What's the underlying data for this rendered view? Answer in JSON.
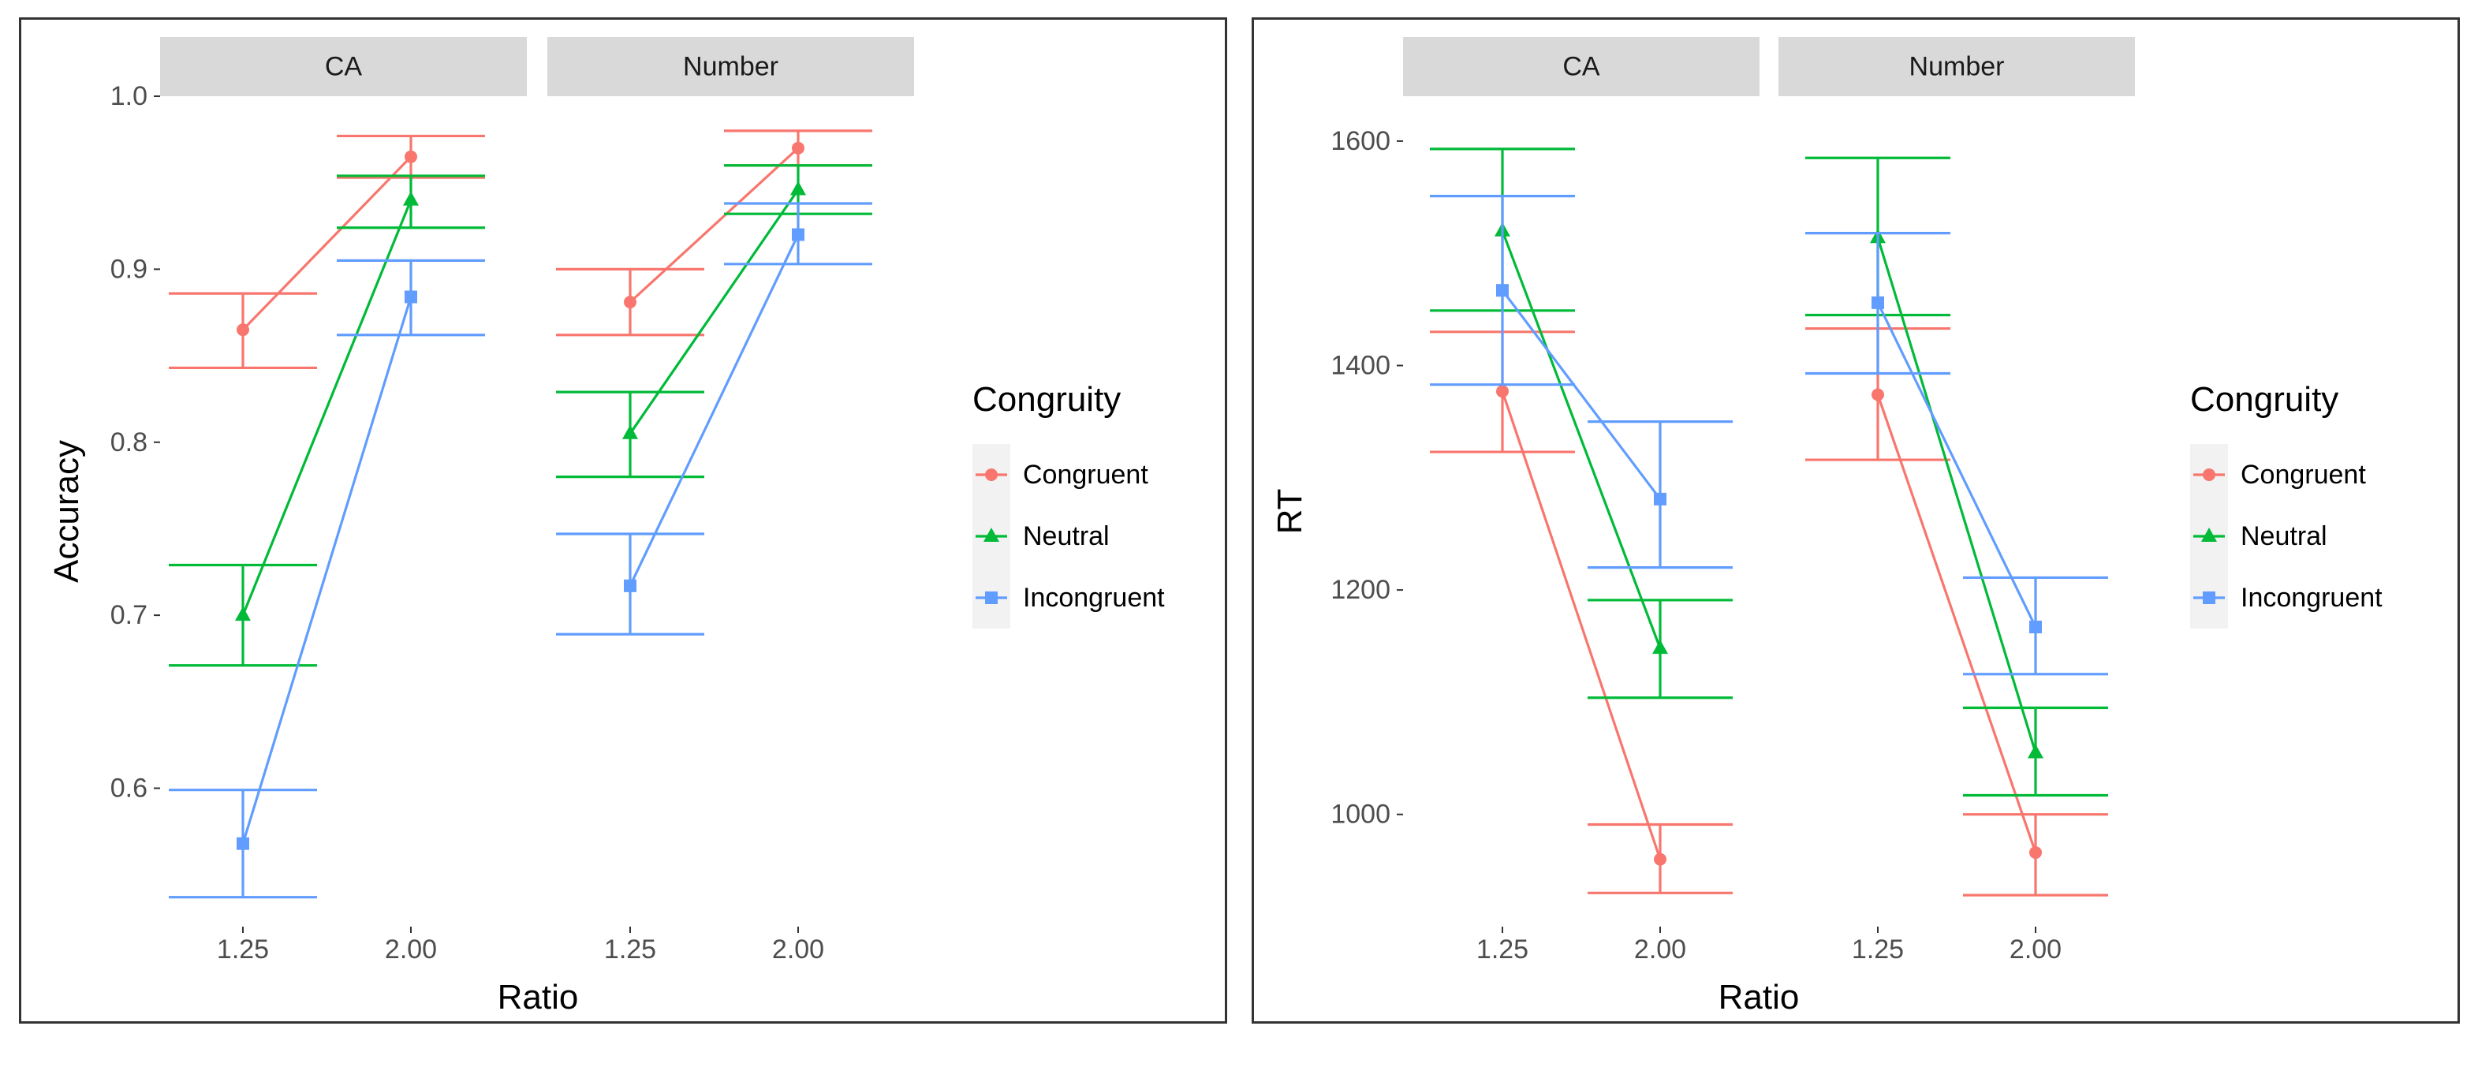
{
  "chart_data": [
    {
      "type": "line",
      "facet_labels": [
        "CA",
        "Number"
      ],
      "categories": [
        "1.25",
        "2.00"
      ],
      "ylabel": "Accuracy",
      "xlabel": "Ratio",
      "ylim": [
        0.52,
        1.0
      ],
      "yticks": [
        0.6,
        0.7,
        0.8,
        0.9,
        1.0
      ],
      "ytick_labels": [
        "0.6",
        "0.7",
        "0.8",
        "0.9",
        "1.0"
      ],
      "legend_title": "Congruity",
      "series": [
        {
          "name": "Congruent",
          "color": "#F8766D",
          "shape": "circle",
          "panels": [
            {
              "values": [
                0.865,
                0.965
              ],
              "err_low": [
                0.843,
                0.953
              ],
              "err_high": [
                0.886,
                0.977
              ]
            },
            {
              "values": [
                0.881,
                0.97
              ],
              "err_low": [
                0.862,
                0.96
              ],
              "err_high": [
                0.9,
                0.98
              ]
            }
          ]
        },
        {
          "name": "Neutral",
          "color": "#00BA38",
          "shape": "triangle",
          "panels": [
            {
              "values": [
                0.7,
                0.94
              ],
              "err_low": [
                0.671,
                0.924
              ],
              "err_high": [
                0.729,
                0.954
              ]
            },
            {
              "values": [
                0.805,
                0.946
              ],
              "err_low": [
                0.78,
                0.932
              ],
              "err_high": [
                0.829,
                0.96
              ]
            }
          ]
        },
        {
          "name": "Incongruent",
          "color": "#619CFF",
          "shape": "square",
          "panels": [
            {
              "values": [
                0.568,
                0.884
              ],
              "err_low": [
                0.537,
                0.862
              ],
              "err_high": [
                0.599,
                0.905
              ]
            },
            {
              "values": [
                0.717,
                0.92
              ],
              "err_low": [
                0.689,
                0.903
              ],
              "err_high": [
                0.747,
                0.938
              ]
            }
          ]
        }
      ]
    },
    {
      "type": "line",
      "facet_labels": [
        "CA",
        "Number"
      ],
      "categories": [
        "1.25",
        "2.00"
      ],
      "ylabel": "RT",
      "xlabel": "Ratio",
      "ylim": [
        900,
        1640
      ],
      "yticks": [
        1000,
        1200,
        1400,
        1600
      ],
      "ytick_labels": [
        "1000",
        "1200",
        "1400",
        "1600"
      ],
      "legend_title": "Congruity",
      "series": [
        {
          "name": "Congruent",
          "color": "#F8766D",
          "shape": "circle",
          "panels": [
            {
              "values": [
                1377,
                960
              ],
              "err_low": [
                1323,
                930
              ],
              "err_high": [
                1430,
                991
              ]
            },
            {
              "values": [
                1374,
                966
              ],
              "err_low": [
                1316,
                928
              ],
              "err_high": [
                1433,
                1000
              ]
            }
          ]
        },
        {
          "name": "Neutral",
          "color": "#00BA38",
          "shape": "triangle",
          "panels": [
            {
              "values": [
                1520,
                1148
              ],
              "err_low": [
                1449,
                1104
              ],
              "err_high": [
                1593,
                1191
              ]
            },
            {
              "values": [
                1514,
                1055
              ],
              "err_low": [
                1445,
                1017
              ],
              "err_high": [
                1585,
                1095
              ]
            }
          ]
        },
        {
          "name": "Incongruent",
          "color": "#619CFF",
          "shape": "square",
          "panels": [
            {
              "values": [
                1467,
                1281
              ],
              "err_low": [
                1383,
                1220
              ],
              "err_high": [
                1551,
                1350
              ]
            },
            {
              "values": [
                1456,
                1167
              ],
              "err_low": [
                1393,
                1125
              ],
              "err_high": [
                1518,
                1211
              ]
            }
          ]
        }
      ]
    }
  ]
}
